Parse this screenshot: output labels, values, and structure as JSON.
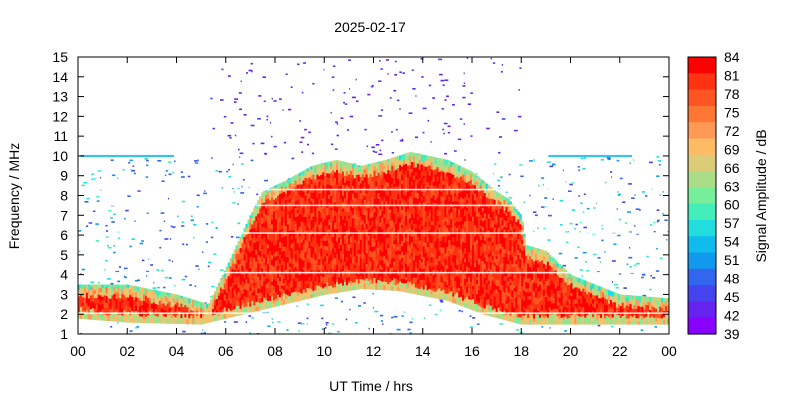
{
  "chart_data": {
    "type": "heatmap",
    "title": "2025-02-17",
    "xlabel": "UT Time / hrs",
    "ylabel": "Frequency / MHz",
    "colorbar_label": "Signal Amplitude / dB",
    "xlim": [
      0,
      24
    ],
    "ylim": [
      1,
      15
    ],
    "x_ticks": [
      "00",
      "02",
      "04",
      "06",
      "08",
      "10",
      "12",
      "14",
      "16",
      "18",
      "20",
      "22",
      "00"
    ],
    "y_ticks": [
      1,
      2,
      3,
      4,
      5,
      6,
      7,
      8,
      9,
      10,
      11,
      12,
      13,
      14,
      15
    ],
    "colorbar_range": [
      39,
      84
    ],
    "colorbar_ticks": [
      84,
      81,
      78,
      75,
      72,
      69,
      66,
      63,
      60,
      57,
      54,
      51,
      48,
      45,
      42,
      39
    ],
    "colorbar_colors": [
      "#ff0000",
      "#ff3311",
      "#ff5522",
      "#ff7733",
      "#ff9955",
      "#ffbb66",
      "#ddcc77",
      "#aadd88",
      "#77ee99",
      "#44eebb",
      "#22dddd",
      "#11bbee",
      "#1199ee",
      "#3366ee",
      "#4444ee",
      "#6622ee",
      "#8800ff"
    ],
    "grid": false,
    "ionogram": {
      "upper_edge_mhz": [
        [
          0,
          3.5
        ],
        [
          2,
          3.5
        ],
        [
          4,
          3.0
        ],
        [
          5.3,
          2.5
        ],
        [
          6,
          4.3
        ],
        [
          7,
          7.0
        ],
        [
          7.5,
          8.2
        ],
        [
          8.5,
          8.8
        ],
        [
          9.5,
          9.5
        ],
        [
          10.5,
          9.8
        ],
        [
          11.5,
          9.5
        ],
        [
          12.5,
          9.8
        ],
        [
          13.5,
          10.2
        ],
        [
          15,
          9.8
        ],
        [
          16,
          9.2
        ],
        [
          17,
          8.2
        ],
        [
          17.5,
          7.8
        ],
        [
          18,
          7.0
        ],
        [
          18.2,
          5.5
        ],
        [
          19,
          5.2
        ],
        [
          20,
          4.0
        ],
        [
          22,
          3.0
        ],
        [
          24,
          2.8
        ]
      ],
      "lower_edge_mhz": [
        [
          0,
          1.8
        ],
        [
          2,
          1.6
        ],
        [
          5,
          1.5
        ],
        [
          6,
          1.8
        ],
        [
          8,
          2.4
        ],
        [
          10,
          3.0
        ],
        [
          11.5,
          3.3
        ],
        [
          13,
          3.2
        ],
        [
          15,
          2.7
        ],
        [
          16.5,
          2.0
        ],
        [
          18,
          1.5
        ],
        [
          24,
          1.5
        ]
      ]
    }
  }
}
